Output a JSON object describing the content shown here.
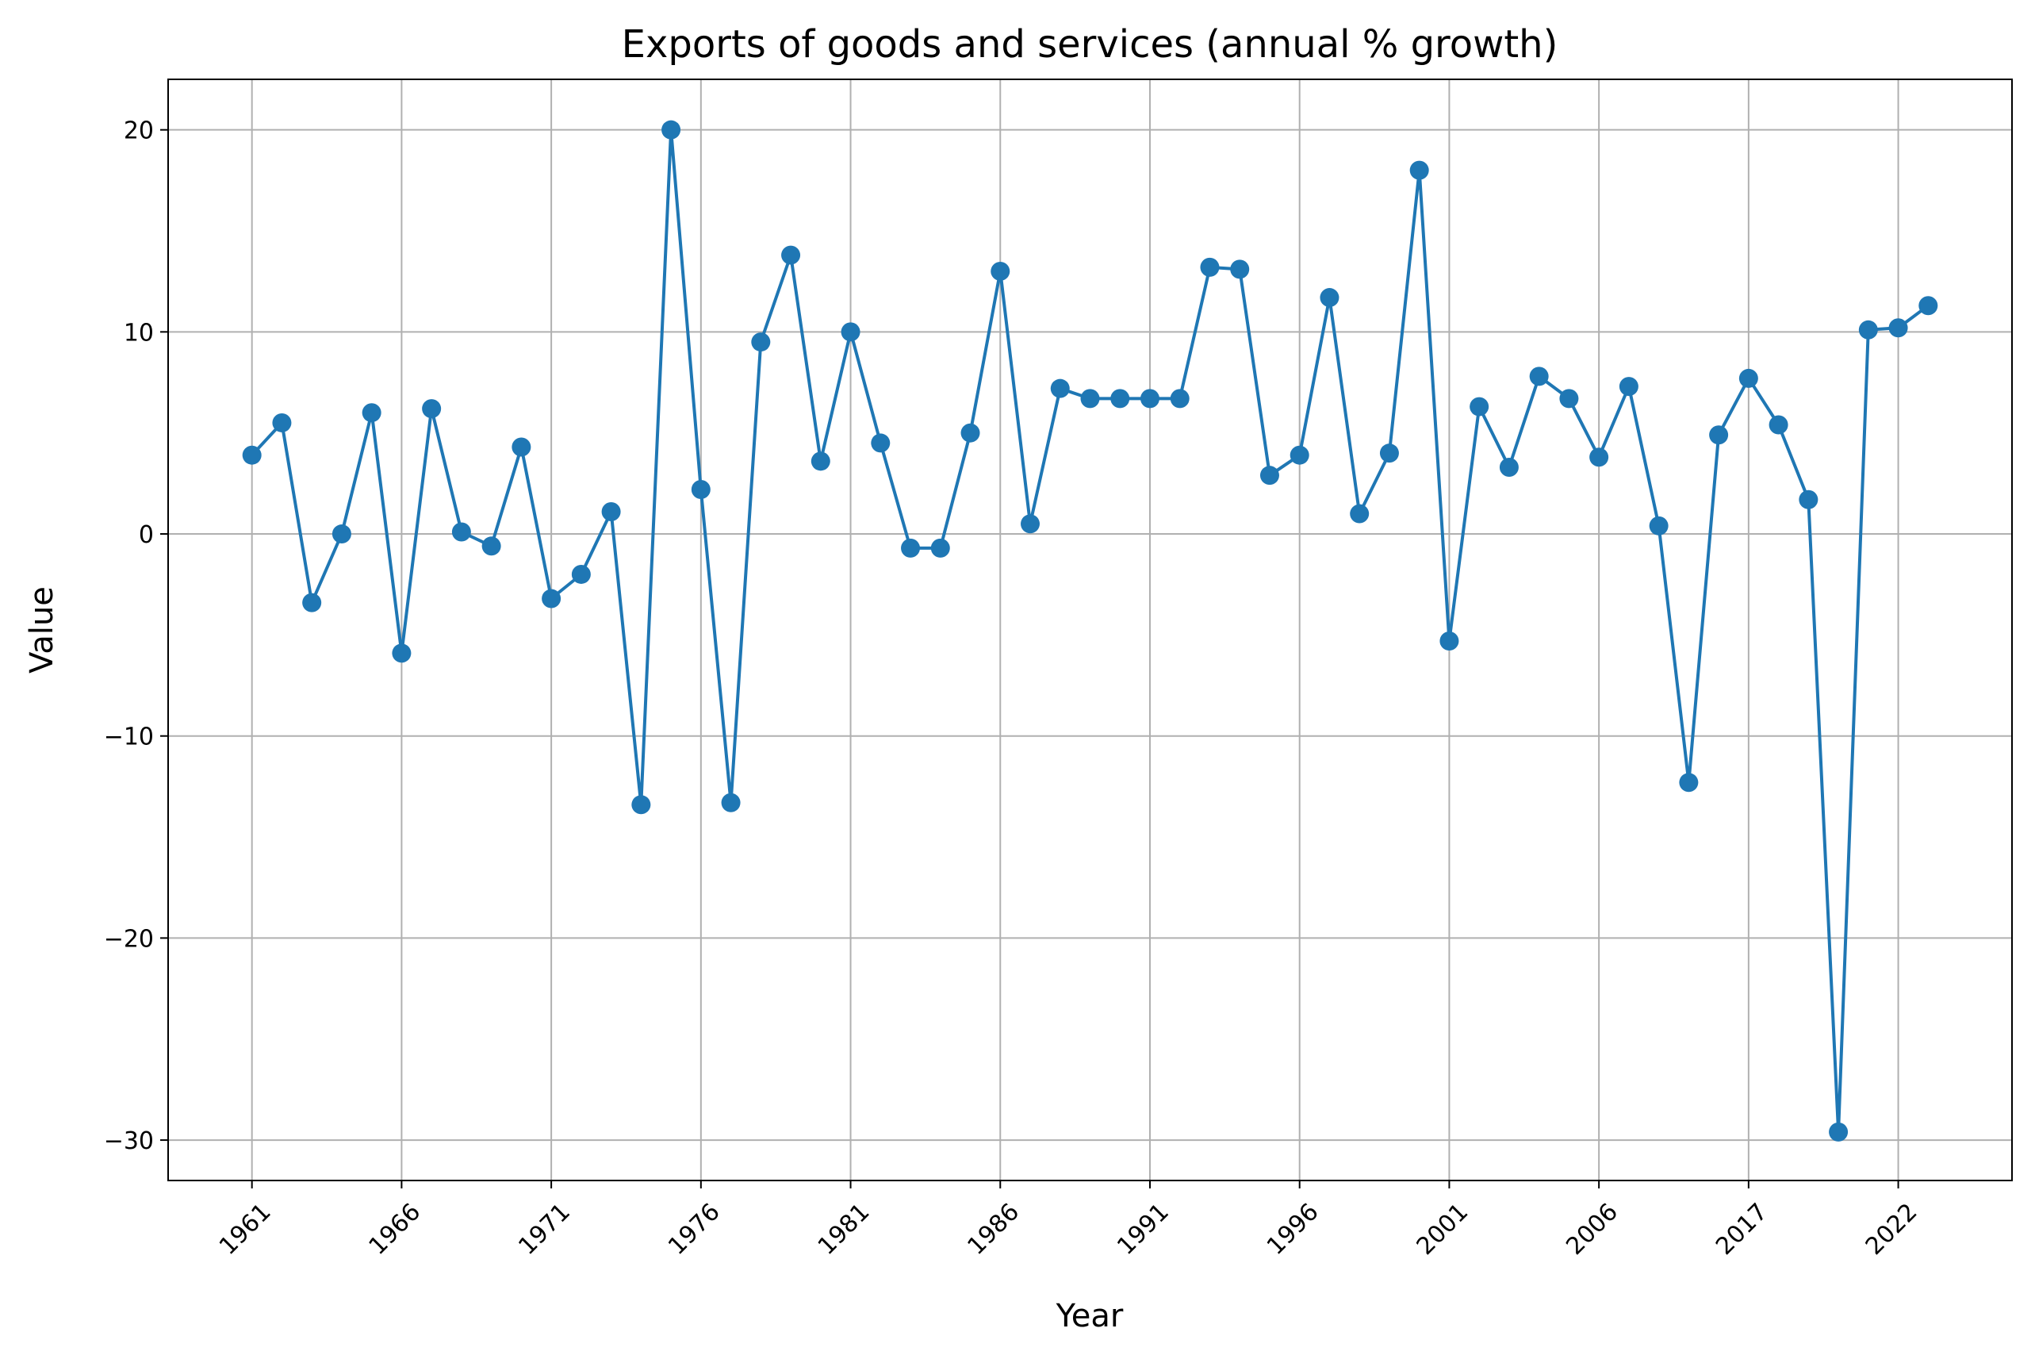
{
  "chart_data": {
    "type": "line",
    "title": "Exports of goods and services (annual % growth)",
    "xlabel": "Year",
    "ylabel": "Value",
    "ylim": [
      -32,
      22.5
    ],
    "y_ticks": [
      20,
      10,
      0,
      -10,
      -20,
      -30
    ],
    "y_tick_labels": [
      "20",
      "10",
      "0",
      "−10",
      "−20",
      "−30"
    ],
    "x_tick_labels": [
      "1961",
      "1966",
      "1971",
      "1976",
      "1981",
      "1986",
      "1991",
      "1996",
      "2001",
      "2006",
      "2017",
      "2022"
    ],
    "x_tick_positions": [
      0,
      5,
      10,
      15,
      20,
      25,
      30,
      35,
      40,
      45,
      50,
      55
    ],
    "x_range": [
      -2.8,
      58.8
    ],
    "grid": true,
    "color": "#1f77b4",
    "marker": "circle",
    "series": [
      {
        "values": [
          3.9,
          5.5,
          -3.4,
          0.0,
          6.0,
          -5.9,
          6.2,
          0.1,
          -0.6,
          4.3,
          -3.2,
          -2.0,
          1.1,
          -13.4,
          20.0,
          2.2,
          -13.3,
          9.5,
          13.8,
          3.6,
          10.0,
          4.5,
          -0.7,
          -0.7,
          5.0,
          13.0,
          0.5,
          7.2,
          6.7,
          6.7,
          6.7,
          6.7,
          13.2,
          13.1,
          2.9,
          3.9,
          11.7,
          1.0,
          4.0,
          18.0,
          -5.3,
          6.3,
          3.3,
          7.8,
          6.7,
          3.8,
          7.3,
          0.4,
          -12.3,
          4.9,
          7.7,
          5.4,
          1.7,
          -29.6,
          10.1,
          10.2,
          11.3
        ]
      }
    ]
  }
}
